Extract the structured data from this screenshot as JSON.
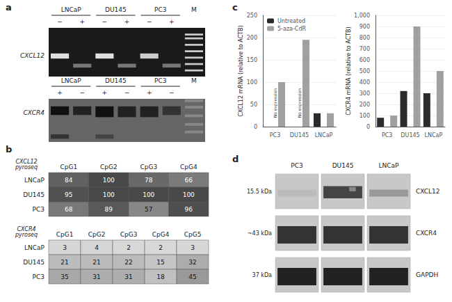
{
  "chart_data": [
    {
      "type": "gel",
      "panel": "a",
      "gels": [
        {
          "gene": "CXCL12",
          "marker": "M",
          "lanes": [
            {
              "label": "LNCaP",
              "signs": [
                "−",
                "+"
              ]
            },
            {
              "label": "DU145",
              "signs": [
                "−",
                "+"
              ]
            },
            {
              "label": "PC3",
              "signs": [
                "−",
                "+"
              ]
            }
          ]
        },
        {
          "gene": "CXCR4",
          "marker": "M",
          "lanes": [
            {
              "label": "LNCaP",
              "signs": [
                "+",
                "−"
              ]
            },
            {
              "label": "DU145",
              "signs": [
                "+",
                "−"
              ]
            },
            {
              "label": "PC3",
              "signs": [
                "+",
                "−"
              ]
            }
          ]
        }
      ]
    },
    {
      "type": "heatmap",
      "panel": "b",
      "title": "CXCL12\npyroseq",
      "categories": [
        "CpG1",
        "CpG2",
        "CpG3",
        "CpG4"
      ],
      "rows": [
        "LNCaP",
        "DU145",
        "PC3"
      ],
      "cells": [
        [
          84,
          100,
          78,
          66
        ],
        [
          95,
          100,
          100,
          100
        ],
        [
          68,
          89,
          57,
          96
        ]
      ],
      "data_labels": true
    },
    {
      "type": "heatmap",
      "title": "CXCR4\npyroseq",
      "categories": [
        "CpG1",
        "CpG2",
        "CpG3",
        "CpG4",
        "CpG5"
      ],
      "rows": [
        "LNCaP",
        "DU145",
        "PC3"
      ],
      "cells": [
        [
          3,
          4,
          2,
          2,
          3
        ],
        [
          21,
          21,
          22,
          15,
          32
        ],
        [
          35,
          31,
          31,
          18,
          45
        ]
      ],
      "data_labels": true
    },
    {
      "type": "bar",
      "panel": "c",
      "categories": [
        "PC3",
        "DU145",
        "LNCaP"
      ],
      "ylabel": "CXCL12 mRNA (relative to ACTB)",
      "series": [
        {
          "name": "Untreated",
          "color": "#2b2b2b",
          "values": [
            0,
            0,
            30
          ]
        },
        {
          "name": "5-aza-CdR",
          "color": "#a0a0a0",
          "values": [
            100,
            195,
            30
          ]
        }
      ],
      "ylim": [
        0,
        250
      ],
      "yticks": [
        0,
        50,
        100,
        150,
        200,
        250
      ],
      "grid": true,
      "legend": "upper left",
      "annotations": [
        {
          "text": "No expression",
          "x": "PC3",
          "y": 20
        },
        {
          "text": "No expression",
          "x": "DU145",
          "y": 20
        }
      ]
    },
    {
      "type": "bar",
      "categories": [
        "PC3",
        "DU145",
        "LNCaP"
      ],
      "ylabel": "CXCR4 mRNA (relative to ACTB)",
      "series": [
        {
          "name": "Untreated",
          "color": "#2b2b2b",
          "values": [
            80,
            320,
            300
          ]
        },
        {
          "name": "5-aza-CdR",
          "color": "#a0a0a0",
          "values": [
            100,
            900,
            500
          ]
        }
      ],
      "ylim": [
        0,
        1000
      ],
      "yticks": [
        0,
        100,
        200,
        300,
        400,
        500,
        600,
        700,
        800,
        900,
        {
          "value": 1000,
          "label": "1,000"
        }
      ],
      "grid": true
    },
    {
      "type": "blot",
      "panel": "d",
      "columns": [
        "PC3",
        "DU145",
        "LNCaP"
      ],
      "rows": [
        "CXCL12",
        "CXCR4",
        "GAPDH"
      ],
      "sizes": [
        "15.5 kDa",
        "~43 kDa",
        "37 kDa"
      ]
    }
  ]
}
